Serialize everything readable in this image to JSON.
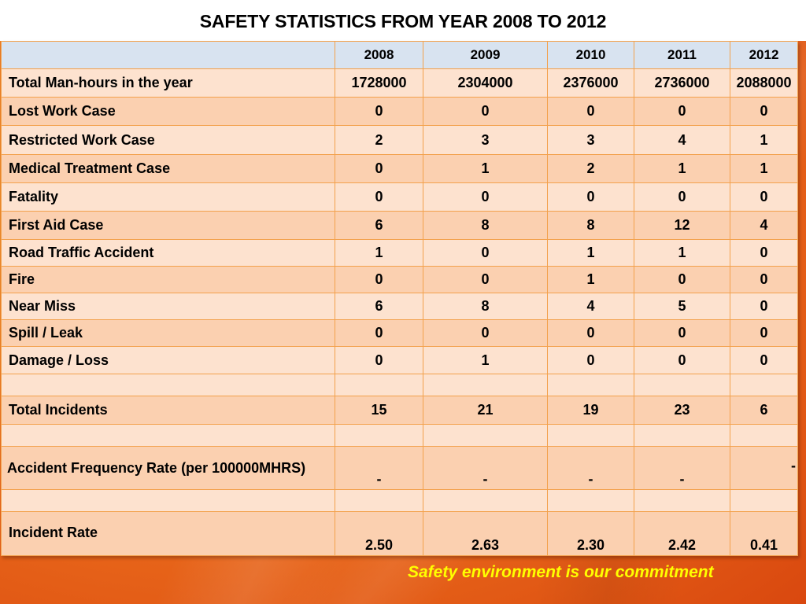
{
  "title": "SAFETY STATISTICS FROM YEAR 2008 TO 2012",
  "years": [
    "2008",
    "2009",
    "2010",
    "2011",
    "2012"
  ],
  "rows": [
    {
      "label": "Total Man-hours in the year",
      "values": [
        "1728000",
        "2304000",
        "2376000",
        "2736000",
        "2088000"
      ]
    },
    {
      "label": "Lost Work Case",
      "values": [
        "0",
        "0",
        "0",
        "0",
        "0"
      ]
    },
    {
      "label": "Restricted Work Case",
      "values": [
        "2",
        "3",
        "3",
        "4",
        "1"
      ]
    },
    {
      "label": "Medical Treatment Case",
      "values": [
        "0",
        "1",
        "2",
        "1",
        "1"
      ]
    },
    {
      "label": "Fatality",
      "values": [
        "0",
        "0",
        "0",
        "0",
        "0"
      ]
    },
    {
      "label": "First Aid Case",
      "values": [
        "6",
        "8",
        "8",
        "12",
        "4"
      ]
    },
    {
      "label": "Road Traffic Accident",
      "values": [
        "1",
        "0",
        "1",
        "1",
        "0"
      ]
    },
    {
      "label": "Fire",
      "values": [
        "0",
        "0",
        "1",
        "0",
        "0"
      ]
    },
    {
      "label": "Near Miss",
      "values": [
        "6",
        "8",
        "4",
        "5",
        "0"
      ]
    },
    {
      "label": "Spill / Leak",
      "values": [
        "0",
        "0",
        "0",
        "0",
        "0"
      ]
    },
    {
      "label": "Damage / Loss",
      "values": [
        "0",
        "1",
        "0",
        "0",
        "0"
      ]
    }
  ],
  "total_incidents": {
    "label": "Total  Incidents",
    "values": [
      "15",
      "21",
      "19",
      "23",
      "6"
    ]
  },
  "accident_frequency_rate": {
    "label": " Accident Frequency Rate (per 100000MHRS)",
    "values": [
      "-",
      "-",
      "-",
      "-",
      "-"
    ]
  },
  "incident_rate": {
    "label": "Incident Rate",
    "values": [
      "2.50",
      "2.63",
      "2.30",
      "2.42",
      "0.41"
    ]
  },
  "footer": "Safety environment is our commitment",
  "colors": {
    "header_row": "#d8e3f0",
    "row_light": "#fde2cf",
    "row_dark": "#fbd0b0",
    "cell_border": "#f3a14c",
    "footer_text": "#ffff00"
  }
}
